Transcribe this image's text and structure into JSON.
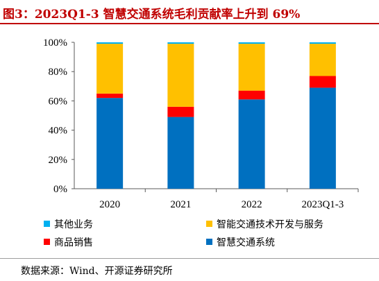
{
  "header": {
    "title": "图3：2023Q1-3 智慧交通系统毛利贡献率上升到 69%"
  },
  "footer": {
    "source": "数据来源：Wind、开源证券研究所"
  },
  "colors": {
    "title_red": "#c00000",
    "smart_traffic": "#0070c0",
    "product_sales": "#ff0000",
    "tech_dev": "#ffc000",
    "other": "#00b0f0"
  },
  "chart_data": {
    "type": "bar",
    "stacked": true,
    "categories": [
      "2020",
      "2021",
      "2022",
      "2023Q1-3"
    ],
    "series": [
      {
        "name": "智慧交通系统",
        "color": "#0070c0",
        "values": [
          62,
          49,
          61,
          69
        ]
      },
      {
        "name": "商品销售",
        "color": "#ff0000",
        "values": [
          3,
          7,
          6,
          8
        ]
      },
      {
        "name": "智能交通技术开发与服务",
        "color": "#ffc000",
        "values": [
          34,
          43,
          32,
          22
        ]
      },
      {
        "name": "其他业务",
        "color": "#00b0f0",
        "values": [
          1,
          1,
          1,
          1
        ]
      }
    ],
    "ylim": [
      0,
      100
    ],
    "yticks": [
      "0%",
      "20%",
      "40%",
      "60%",
      "80%",
      "100%"
    ],
    "grid": false,
    "legend_position": "bottom"
  }
}
